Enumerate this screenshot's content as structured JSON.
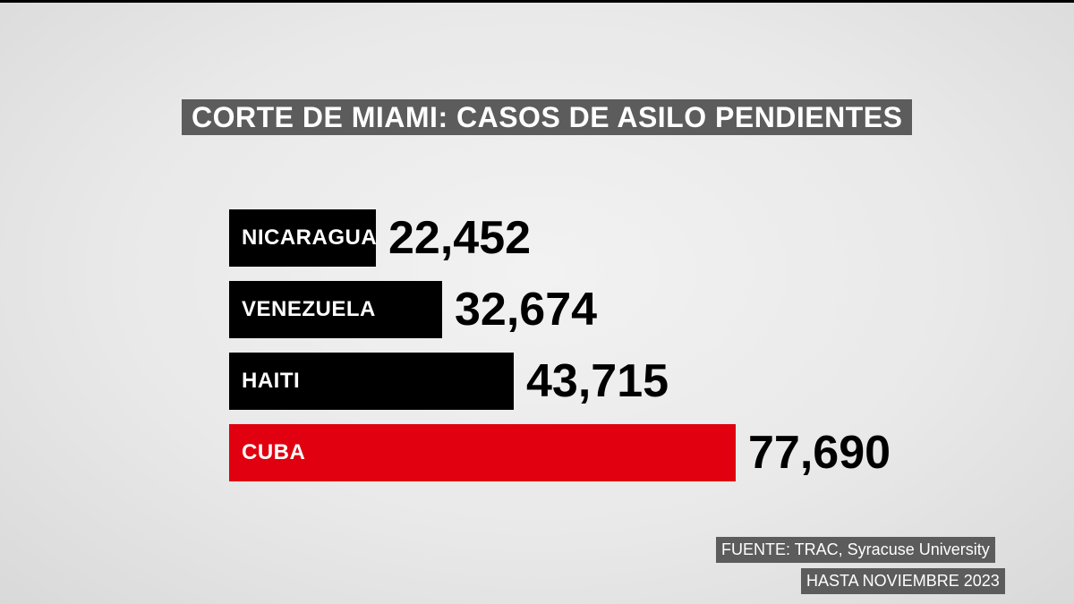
{
  "chart_data": {
    "type": "bar",
    "orientation": "horizontal",
    "title": "CORTE DE MIAMI: CASOS DE ASILO PENDIENTES",
    "categories": [
      "NICARAGUA",
      "VENEZUELA",
      "HAITI",
      "CUBA"
    ],
    "values": [
      22452,
      32674,
      43715,
      77690
    ],
    "value_labels": [
      "22,452",
      "32,674",
      "43,715",
      "77,690"
    ],
    "bar_colors": [
      "#000000",
      "#000000",
      "#000000",
      "#e0000f"
    ],
    "xlim": [
      0,
      77690
    ],
    "grid": false,
    "legend": "none"
  },
  "footer": {
    "source": "FUENTE: TRAC, Syracuse University",
    "date": "HASTA NOVIEMBRE 2023"
  },
  "colors": {
    "highlight": "#e0000f",
    "bar": "#000000",
    "caption_bg": "#5c5c5c"
  }
}
